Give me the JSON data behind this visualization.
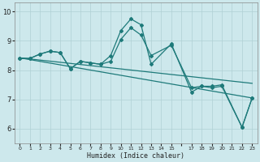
{
  "title": "",
  "xlabel": "Humidex (Indice chaleur)",
  "ylabel": "",
  "bg_color": "#cde8ec",
  "grid_color": "#b0d0d4",
  "line_color": "#1e7a7a",
  "xlim": [
    -0.5,
    23.5
  ],
  "ylim": [
    5.5,
    10.3
  ],
  "xticks": [
    0,
    1,
    2,
    3,
    4,
    5,
    6,
    7,
    8,
    9,
    10,
    11,
    12,
    13,
    14,
    15,
    17,
    18,
    19,
    20,
    21,
    22,
    23
  ],
  "yticks": [
    6,
    7,
    8,
    9,
    10
  ],
  "series": [
    {
      "x": [
        0,
        1,
        2,
        3,
        4,
        5,
        6,
        7,
        8,
        9,
        10,
        11,
        12,
        13,
        15,
        17,
        18,
        19,
        20,
        22,
        23
      ],
      "y": [
        8.4,
        8.4,
        8.55,
        8.65,
        8.6,
        8.05,
        8.3,
        8.25,
        8.2,
        8.5,
        9.35,
        9.75,
        9.55,
        8.2,
        8.9,
        7.25,
        7.45,
        7.4,
        7.45,
        6.05,
        7.05
      ]
    },
    {
      "x": [
        0,
        1,
        2,
        3,
        4,
        5,
        6,
        7,
        8,
        9,
        10,
        11,
        12,
        13,
        15,
        17,
        18,
        19,
        20,
        22,
        23
      ],
      "y": [
        8.4,
        8.4,
        8.55,
        8.65,
        8.6,
        8.05,
        8.3,
        8.25,
        8.2,
        8.3,
        9.05,
        9.45,
        9.2,
        8.5,
        8.85,
        7.4,
        7.45,
        7.45,
        7.5,
        6.05,
        7.05
      ]
    },
    {
      "x": [
        0,
        23
      ],
      "y": [
        8.42,
        7.05
      ]
    },
    {
      "x": [
        0,
        23
      ],
      "y": [
        8.42,
        7.55
      ]
    }
  ]
}
